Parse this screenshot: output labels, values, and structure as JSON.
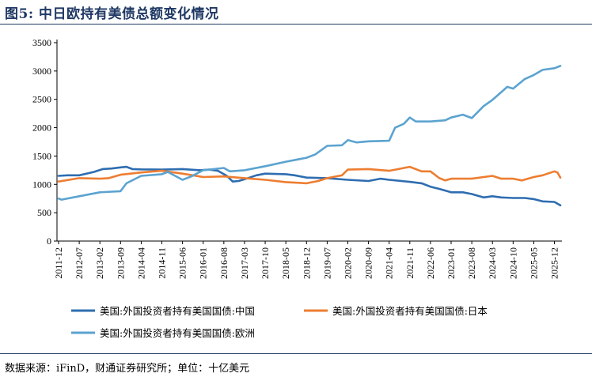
{
  "title": "图5: 中日欧持有美债总额变化情况",
  "source": "数据来源：iFinD，财通证券研究所；单位：十亿美元",
  "chart_data": {
    "type": "line",
    "title": "图5: 中日欧持有美债总额变化情况",
    "xlabel": "",
    "ylabel": "",
    "ylim": [
      0,
      3500
    ],
    "yticks": [
      "0",
      "500",
      "1000",
      "1500",
      "2000",
      "2500",
      "3000",
      "3500"
    ],
    "xticks": [
      "2011-12",
      "2012-07",
      "2013-02",
      "2013-09",
      "2014-04",
      "2014-11",
      "2015-06",
      "2016-01",
      "2016-08",
      "2017-03",
      "2017-10",
      "2018-05",
      "2018-12",
      "2019-07",
      "2020-02",
      "2020-09",
      "2021-04",
      "2021-11",
      "2022-06",
      "2023-01",
      "2023-08",
      "2024-03",
      "2024-10",
      "2025-05",
      "2025-12"
    ],
    "x_start": "2011-12",
    "x_end": "2026-02",
    "grid": false,
    "legend": "bottom",
    "series": [
      {
        "name": "美国:外国投资者持有美国国债:中国",
        "color": "#2e6db0",
        "points": [
          [
            "2011-12",
            1150
          ],
          [
            "2012-03",
            1160
          ],
          [
            "2012-07",
            1160
          ],
          [
            "2012-12",
            1220
          ],
          [
            "2013-03",
            1270
          ],
          [
            "2013-06",
            1280
          ],
          [
            "2013-09",
            1300
          ],
          [
            "2013-11",
            1310
          ],
          [
            "2014-01",
            1270
          ],
          [
            "2014-04",
            1265
          ],
          [
            "2014-11",
            1260
          ],
          [
            "2015-06",
            1270
          ],
          [
            "2015-12",
            1250
          ],
          [
            "2016-03",
            1260
          ],
          [
            "2016-06",
            1240
          ],
          [
            "2016-09",
            1150
          ],
          [
            "2016-11",
            1050
          ],
          [
            "2017-01",
            1060
          ],
          [
            "2017-03",
            1090
          ],
          [
            "2017-07",
            1160
          ],
          [
            "2017-10",
            1190
          ],
          [
            "2018-05",
            1180
          ],
          [
            "2018-08",
            1160
          ],
          [
            "2018-12",
            1120
          ],
          [
            "2019-07",
            1110
          ],
          [
            "2020-02",
            1080
          ],
          [
            "2020-09",
            1060
          ],
          [
            "2021-01",
            1100
          ],
          [
            "2021-04",
            1080
          ],
          [
            "2021-11",
            1045
          ],
          [
            "2022-03",
            1020
          ],
          [
            "2022-06",
            960
          ],
          [
            "2022-09",
            920
          ],
          [
            "2023-01",
            860
          ],
          [
            "2023-05",
            860
          ],
          [
            "2023-08",
            830
          ],
          [
            "2023-12",
            770
          ],
          [
            "2024-03",
            790
          ],
          [
            "2024-06",
            770
          ],
          [
            "2024-10",
            760
          ],
          [
            "2025-02",
            760
          ],
          [
            "2025-05",
            740
          ],
          [
            "2025-08",
            700
          ],
          [
            "2025-12",
            690
          ],
          [
            "2026-02",
            630
          ]
        ]
      },
      {
        "name": "美国:外国投资者持有美国国债:日本",
        "color": "#ed7d31",
        "points": [
          [
            "2011-12",
            1050
          ],
          [
            "2012-07",
            1110
          ],
          [
            "2013-02",
            1100
          ],
          [
            "2013-05",
            1110
          ],
          [
            "2013-09",
            1170
          ],
          [
            "2014-04",
            1210
          ],
          [
            "2014-11",
            1240
          ],
          [
            "2015-06",
            1190
          ],
          [
            "2016-01",
            1130
          ],
          [
            "2016-08",
            1140
          ],
          [
            "2017-03",
            1110
          ],
          [
            "2017-10",
            1080
          ],
          [
            "2018-05",
            1040
          ],
          [
            "2018-12",
            1020
          ],
          [
            "2019-04",
            1060
          ],
          [
            "2019-07",
            1110
          ],
          [
            "2019-12",
            1160
          ],
          [
            "2020-02",
            1260
          ],
          [
            "2020-09",
            1270
          ],
          [
            "2021-04",
            1240
          ],
          [
            "2021-11",
            1310
          ],
          [
            "2022-03",
            1230
          ],
          [
            "2022-06",
            1230
          ],
          [
            "2022-09",
            1110
          ],
          [
            "2022-11",
            1070
          ],
          [
            "2023-01",
            1100
          ],
          [
            "2023-08",
            1100
          ],
          [
            "2024-03",
            1150
          ],
          [
            "2024-06",
            1100
          ],
          [
            "2024-10",
            1100
          ],
          [
            "2025-01",
            1070
          ],
          [
            "2025-05",
            1130
          ],
          [
            "2025-08",
            1160
          ],
          [
            "2025-12",
            1230
          ],
          [
            "2026-01",
            1210
          ],
          [
            "2026-02",
            1120
          ]
        ]
      },
      {
        "name": "美国:外国投资者持有美国国债:欧洲",
        "color": "#5ba3d0",
        "points": [
          [
            "2011-12",
            750
          ],
          [
            "2012-01",
            730
          ],
          [
            "2012-07",
            790
          ],
          [
            "2013-02",
            860
          ],
          [
            "2013-09",
            880
          ],
          [
            "2013-11",
            1020
          ],
          [
            "2014-04",
            1150
          ],
          [
            "2014-11",
            1180
          ],
          [
            "2015-01",
            1220
          ],
          [
            "2015-06",
            1080
          ],
          [
            "2015-09",
            1140
          ],
          [
            "2016-01",
            1250
          ],
          [
            "2016-08",
            1290
          ],
          [
            "2016-10",
            1230
          ],
          [
            "2017-03",
            1250
          ],
          [
            "2017-10",
            1320
          ],
          [
            "2018-05",
            1400
          ],
          [
            "2018-12",
            1470
          ],
          [
            "2019-03",
            1530
          ],
          [
            "2019-07",
            1680
          ],
          [
            "2019-12",
            1690
          ],
          [
            "2020-02",
            1780
          ],
          [
            "2020-05",
            1740
          ],
          [
            "2020-09",
            1760
          ],
          [
            "2021-04",
            1770
          ],
          [
            "2021-06",
            2000
          ],
          [
            "2021-09",
            2070
          ],
          [
            "2021-11",
            2180
          ],
          [
            "2022-01",
            2110
          ],
          [
            "2022-06",
            2110
          ],
          [
            "2022-11",
            2130
          ],
          [
            "2023-01",
            2180
          ],
          [
            "2023-05",
            2230
          ],
          [
            "2023-08",
            2170
          ],
          [
            "2023-12",
            2380
          ],
          [
            "2024-03",
            2490
          ],
          [
            "2024-08",
            2720
          ],
          [
            "2024-10",
            2690
          ],
          [
            "2025-02",
            2860
          ],
          [
            "2025-05",
            2930
          ],
          [
            "2025-08",
            3020
          ],
          [
            "2025-12",
            3050
          ],
          [
            "2026-02",
            3090
          ]
        ]
      }
    ]
  }
}
